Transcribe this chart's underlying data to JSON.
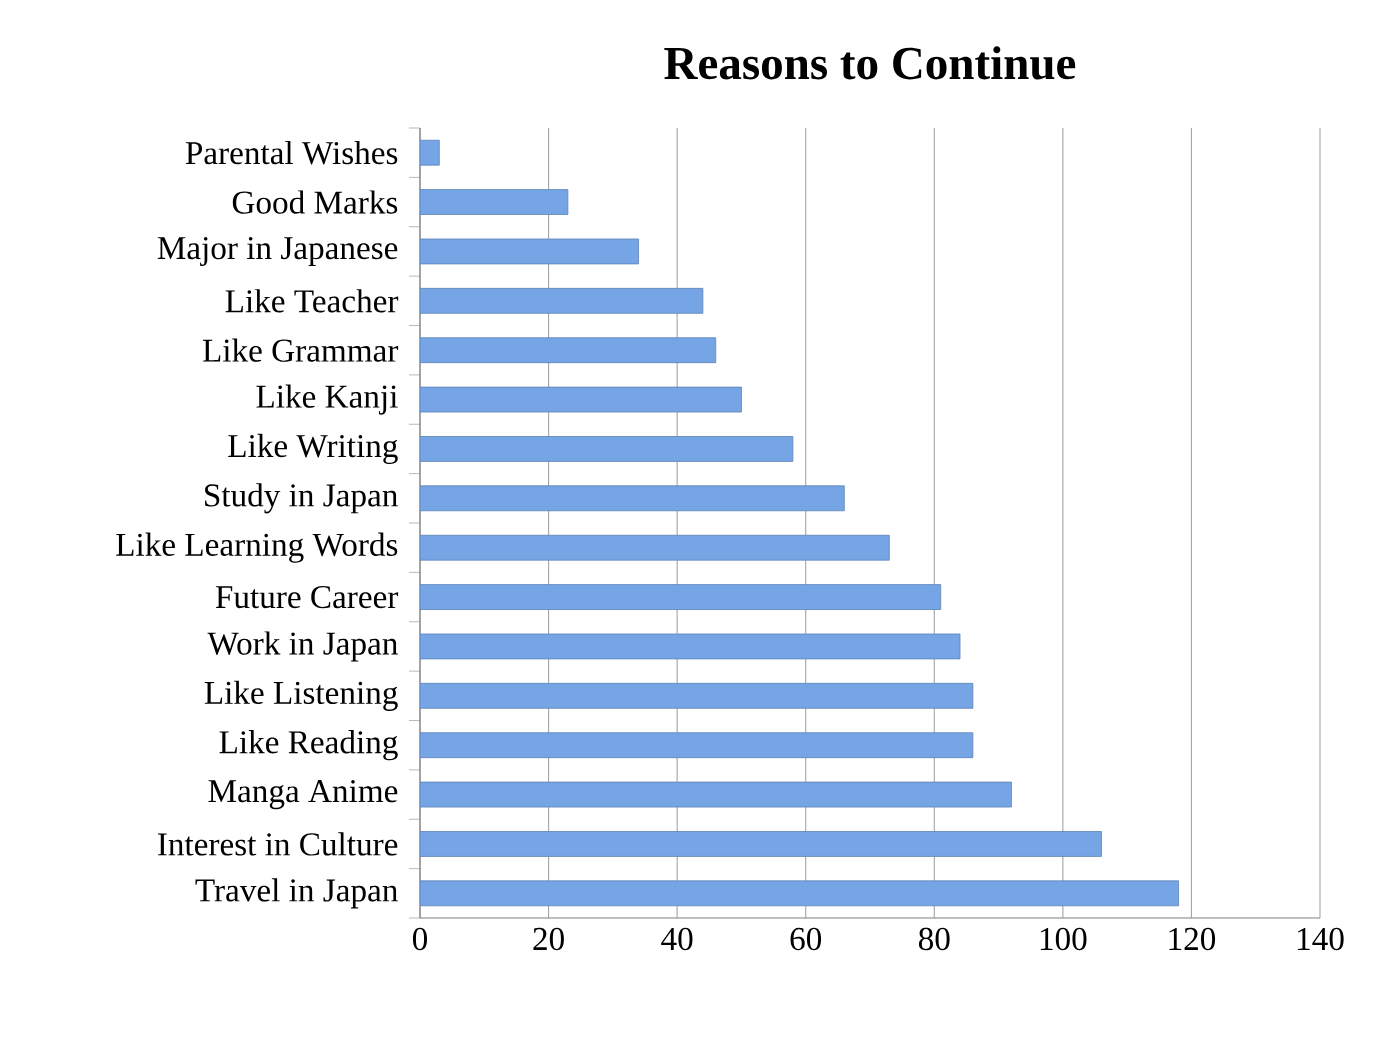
{
  "chart_data": {
    "type": "bar",
    "orientation": "horizontal",
    "title": "Reasons to Continue",
    "categories": [
      "Parental Wishes",
      "Good Marks",
      "Major in Japanese",
      "Like Teacher",
      "Like Grammar",
      "Like Kanji",
      "Like Writing",
      "Study in Japan",
      "Like Learning Words",
      "Future Career",
      "Work in Japan",
      "Like Listening",
      "Like Reading",
      "Manga Anime",
      "Interest in Culture",
      "Travel in Japan"
    ],
    "values": [
      3,
      23,
      34,
      44,
      46,
      50,
      58,
      66,
      73,
      81,
      84,
      86,
      86,
      92,
      106,
      118
    ],
    "color": "#76a5e6",
    "xlim": [
      0,
      140
    ],
    "xticks": [
      0,
      20,
      40,
      60,
      80,
      100,
      120,
      140
    ],
    "grid": "x"
  }
}
